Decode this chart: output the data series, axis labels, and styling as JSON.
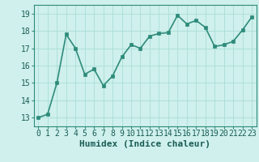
{
  "x": [
    0,
    1,
    2,
    3,
    4,
    5,
    6,
    7,
    8,
    9,
    10,
    11,
    12,
    13,
    14,
    15,
    16,
    17,
    18,
    19,
    20,
    21,
    22,
    23
  ],
  "y": [
    13.0,
    13.2,
    15.0,
    17.8,
    17.0,
    15.5,
    15.8,
    14.85,
    15.4,
    16.5,
    17.2,
    17.0,
    17.7,
    17.85,
    17.9,
    18.9,
    18.4,
    18.6,
    18.2,
    17.1,
    17.2,
    17.4,
    18.05,
    18.8
  ],
  "xlabel": "Humidex (Indice chaleur)",
  "line_color": "#2e8b7a",
  "marker_color": "#2e8b7a",
  "bg_color": "#cff0ec",
  "grid_color": "#aaddd8",
  "ylim": [
    12.5,
    19.5
  ],
  "xlim": [
    -0.5,
    23.5
  ],
  "yticks": [
    13,
    14,
    15,
    16,
    17,
    18,
    19
  ],
  "xticks": [
    0,
    1,
    2,
    3,
    4,
    5,
    6,
    7,
    8,
    9,
    10,
    11,
    12,
    13,
    14,
    15,
    16,
    17,
    18,
    19,
    20,
    21,
    22,
    23
  ],
  "tick_fontsize": 7,
  "xlabel_fontsize": 8,
  "line_width": 1.2,
  "marker_size": 2.5
}
